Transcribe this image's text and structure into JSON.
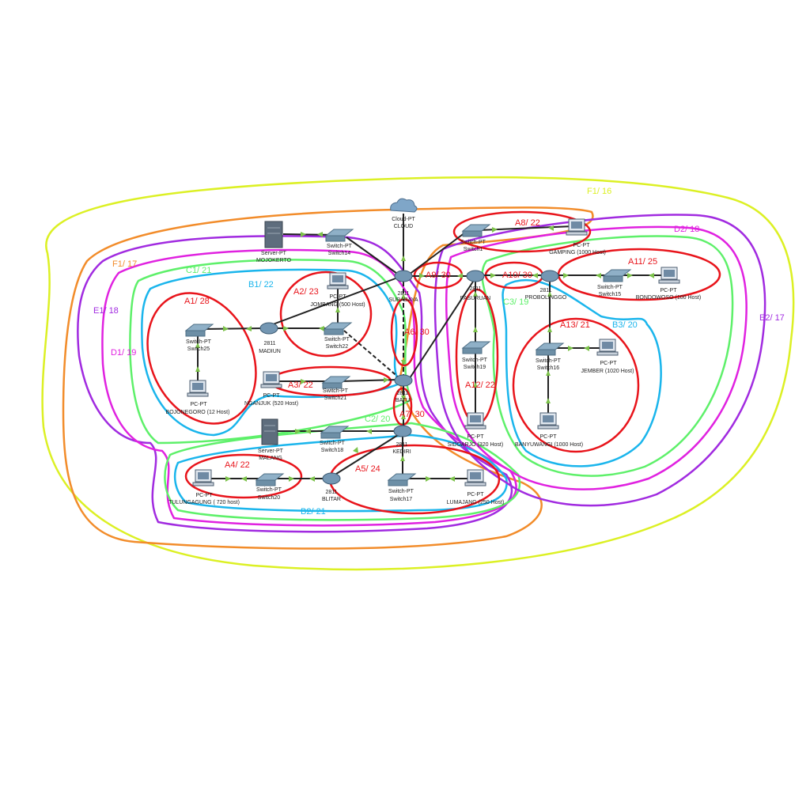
{
  "colors": {
    "A": "#e8141b",
    "B": "#1ab5ec",
    "C": "#5ef06a",
    "D": "#e022e0",
    "E": "#a12be0",
    "F_orange": "#f28c2a",
    "F_yellow": "#dcf024",
    "link": "#222222",
    "arrow": "#7cc24a"
  },
  "devices": {
    "cloud": [
      "Cloud-PT",
      "CLOUD"
    ],
    "server_mojokerto": [
      "Server-PT",
      "MOJOKERTO"
    ],
    "switch14": [
      "Switch-PT",
      "Switch14"
    ],
    "switch1": [
      "Switch-PT",
      "Switch1"
    ],
    "pc_gamping": [
      "PC-PT",
      "GAMPING (1000 Host)"
    ],
    "surabaya": [
      "2811",
      "SURABAYA"
    ],
    "pasuruan": [
      "2811",
      "PASURUAN"
    ],
    "probolinggo": [
      "2811",
      "PROBOLINGGO"
    ],
    "switch15": [
      "Switch-PT",
      "Switch15"
    ],
    "pc_bondowoso": [
      "PC-PT",
      "BONDOWOSO (100 Host)"
    ],
    "pc_jombang": [
      "PC-PT",
      "JOMBANG (500 Host)"
    ],
    "switch25": [
      "Switch-PT",
      "Switch25"
    ],
    "madiun": [
      "2811",
      "MADIUN"
    ],
    "switch22": [
      "Switch-PT",
      "Switch22"
    ],
    "switch19": [
      "Switch-PT",
      "Switch19"
    ],
    "switch16": [
      "Switch-PT",
      "Switch16"
    ],
    "pc_jember": [
      "PC-PT",
      "JEMBER (1020 Host)"
    ],
    "pc_bojonegoro": [
      "PC-PT",
      "BOJONEGORO (12 Host)"
    ],
    "pc_nganjuk": [
      "PC-PT",
      "NGANJUK (520 Host)"
    ],
    "switch21": [
      "Switch-PT",
      "Switch21"
    ],
    "batu": [
      "2811",
      "BATU"
    ],
    "pc_sidoarjo": [
      "PC-PT",
      "SIDOARJO (320 Host)"
    ],
    "pc_banyuwangi": [
      "PC-PT",
      "BANYUWANGI (1000 Host)"
    ],
    "server_malang": [
      "Server-PT",
      "MALANG"
    ],
    "switch18": [
      "Switch-PT",
      "Switch18"
    ],
    "kediri": [
      "2811",
      "KEDIRI"
    ],
    "pc_tulungagung": [
      "PC-PT",
      "TULUNGAGUNG ( 720 host)"
    ],
    "switch20": [
      "Switch-PT",
      "Switch20"
    ],
    "blitar": [
      "2811",
      "BLITAR"
    ],
    "switch17": [
      "Switch-PT",
      "Switch17"
    ],
    "pc_lumajang": [
      "PC-PT",
      "LUMAJANG (250 Host)"
    ]
  },
  "subnets": {
    "A1": "A1/ 28",
    "A2": "A2/ 23",
    "A3": "A3/ 22",
    "A4": "A4/ 22",
    "A5": "A5/ 24",
    "A6": "A6/ 30",
    "A7": "A7/ 30",
    "A8": "A8/ 22",
    "A9": "A9/ 30",
    "A10": "A10/ 30",
    "A11": "A11/ 25",
    "A12": "A12/ 22",
    "A13": "A13/ 21",
    "B1": "B1/ 22",
    "B2": "B2/ 21",
    "B3": "B3/ 20",
    "C1": "C1/ 21",
    "C2": "C2/ 20",
    "C3": "C3/ 19",
    "D1": "D1/ 19",
    "D2": "D2/ 18",
    "E1": "E1/ 18",
    "E2": "E2/ 17",
    "F1a": "F1/ 17",
    "F1b": "F1/ 16"
  }
}
